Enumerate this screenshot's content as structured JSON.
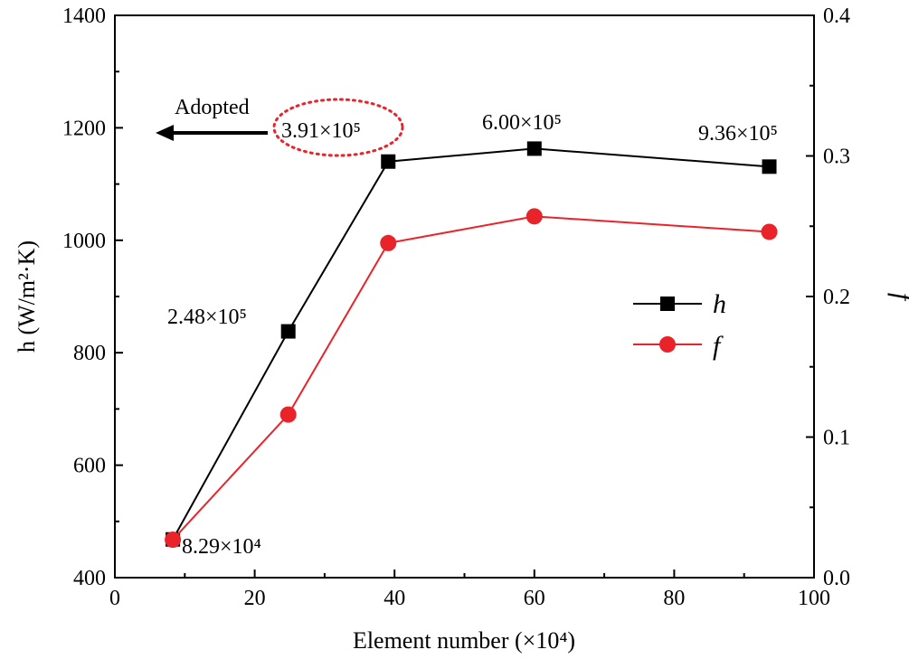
{
  "chart_data": {
    "type": "line",
    "title": "",
    "x": [
      8.29,
      24.8,
      39.1,
      60.0,
      93.6
    ],
    "xlim": [
      0,
      100
    ],
    "xticks": [
      0,
      20,
      40,
      60,
      80,
      100
    ],
    "xtick_labels": [
      "0",
      "20",
      "40",
      "60",
      "80",
      "100"
    ],
    "xlabel": "Element number (×10⁴)",
    "ylabel": "h (W/m²·K)",
    "ylim": [
      400,
      1400
    ],
    "yticks": [
      400,
      600,
      800,
      1000,
      1200,
      1400
    ],
    "ytick_labels": [
      "400",
      "600",
      "800",
      "1000",
      "1200",
      "1400"
    ],
    "y2label": "f",
    "y2lim": [
      0.0,
      0.4
    ],
    "y2ticks": [
      0.0,
      0.1,
      0.2,
      0.3,
      0.4
    ],
    "y2tick_labels": [
      "0.0",
      "0.1",
      "0.2",
      "0.3",
      "0.4"
    ],
    "series": [
      {
        "name": "h",
        "axis": "left",
        "color": "#000000",
        "marker": "square",
        "values": [
          468,
          838,
          1140,
          1163,
          1131
        ]
      },
      {
        "name": "f",
        "axis": "right",
        "color": "#e8232a",
        "marker": "circle",
        "values": [
          0.027,
          0.116,
          0.238,
          0.257,
          0.246
        ]
      }
    ],
    "point_labels": [
      {
        "text": "8.29×10⁴"
      },
      {
        "text": "2.48×10⁵"
      },
      {
        "text": "3.91×10⁵"
      },
      {
        "text": "6.00×10⁵"
      },
      {
        "text": "9.36×10⁵"
      }
    ],
    "annotation": {
      "text": "Adopted",
      "circle_color": "#e8232a"
    },
    "legend": {
      "position": "center-right",
      "entries": [
        "h",
        "f"
      ]
    }
  }
}
